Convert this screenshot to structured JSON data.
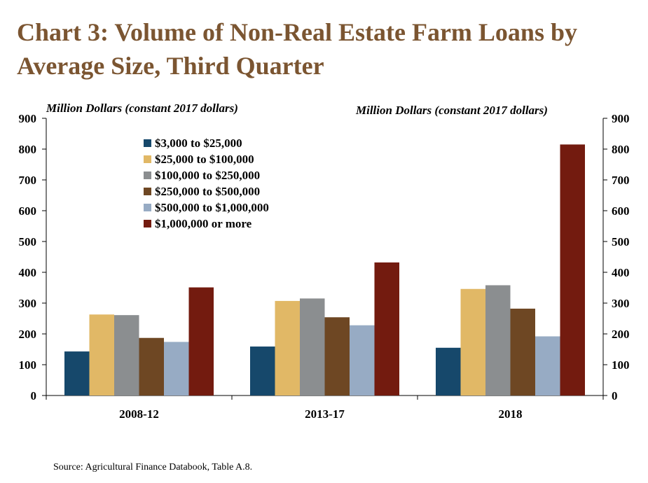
{
  "title": "Chart 3: Volume of Non-Real Estate Farm Loans by Average Size, Third Quarter",
  "source": "Source: Agricultural Finance Databook, Table A.8.",
  "chart_data": {
    "type": "bar",
    "title": "Chart 3: Volume of Non-Real Estate Farm Loans by Average Size, Third Quarter",
    "ylabel_left": "Million Dollars (constant 2017 dollars)",
    "ylabel_right": "Million Dollars (constant 2017 dollars)",
    "ylim": [
      0,
      900
    ],
    "yticks": [
      0,
      100,
      200,
      300,
      400,
      500,
      600,
      700,
      800,
      900
    ],
    "categories": [
      "2008-12",
      "2013-17",
      "2018"
    ],
    "legend_position": "top-left",
    "grid": false,
    "series": [
      {
        "name": "$3,000 to $25,000",
        "color": "#16486b",
        "values": [
          143,
          159,
          155
        ]
      },
      {
        "name": "$25,000 to $100,000",
        "color": "#e1b866",
        "values": [
          263,
          307,
          346
        ]
      },
      {
        "name": "$100,000 to $250,000",
        "color": "#8b8e90",
        "values": [
          261,
          315,
          358
        ]
      },
      {
        "name": "$250,000 to $500,000",
        "color": "#6e4723",
        "values": [
          187,
          254,
          282
        ]
      },
      {
        "name": "$500,000 to $1,000,000",
        "color": "#97abc4",
        "values": [
          174,
          228,
          192
        ]
      },
      {
        "name": "$1,000,000 or more",
        "color": "#731b0f",
        "values": [
          351,
          432,
          815
        ]
      }
    ]
  }
}
